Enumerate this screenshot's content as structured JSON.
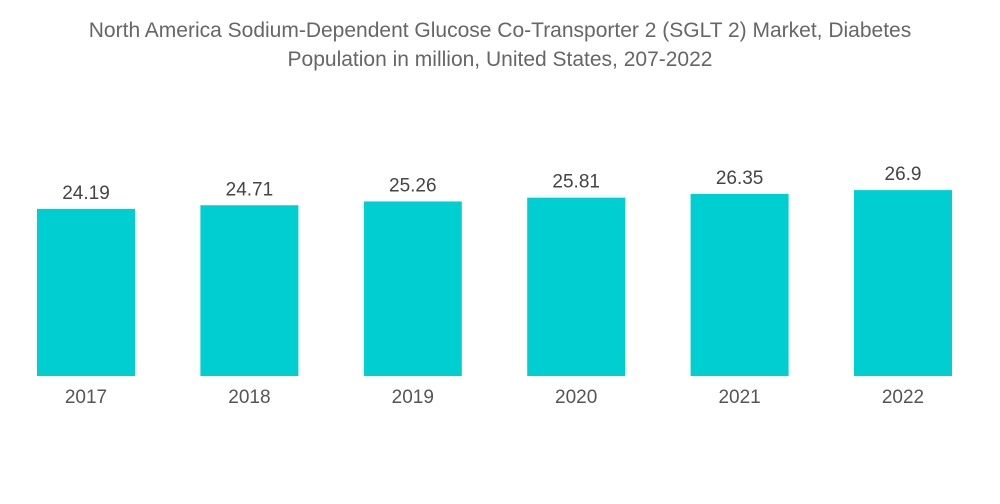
{
  "chart_data": {
    "type": "bar",
    "title_line1": "North America Sodium-Dependent Glucose Co-Transporter 2 (SGLT 2) Market, Diabetes",
    "title_line2": "Population in million, United States, 207-2022",
    "categories": [
      "2017",
      "2018",
      "2019",
      "2020",
      "2021",
      "2022"
    ],
    "values": [
      24.19,
      24.71,
      25.26,
      25.81,
      26.35,
      26.9
    ],
    "value_labels": [
      "24.19",
      "24.71",
      "25.26",
      "25.81",
      "26.35",
      "26.9"
    ],
    "xlabel": "",
    "ylabel": "",
    "ylim": [
      0,
      27
    ],
    "grid": false,
    "legend": "none",
    "bar_color": "#00CED1"
  }
}
